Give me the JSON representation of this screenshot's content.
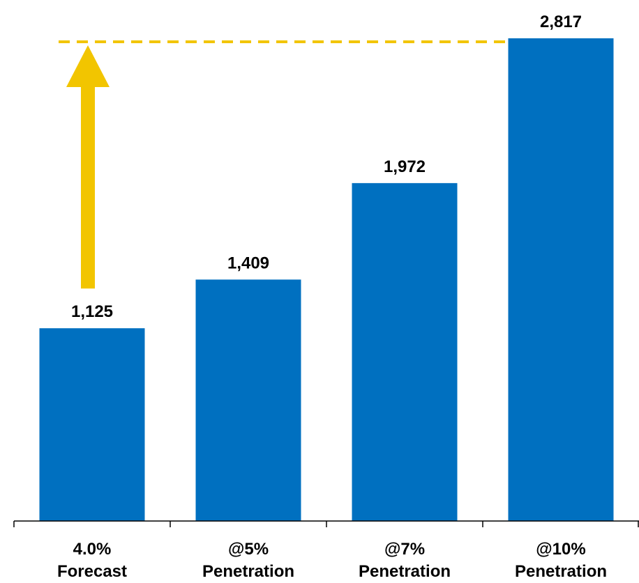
{
  "chart_data": {
    "type": "bar",
    "categories": [
      [
        "4.0%",
        "Forecast"
      ],
      [
        "@5%",
        "Penetration"
      ],
      [
        "@7%",
        "Penetration"
      ],
      [
        "@10%",
        "Penetration"
      ]
    ],
    "values": [
      1125,
      1409,
      1972,
      2817
    ],
    "data_labels": [
      "1,125",
      "1,409",
      "1,972",
      "2,817"
    ],
    "title": "",
    "xlabel": "",
    "ylabel": "",
    "ylim": [
      0,
      2817
    ],
    "grid": false,
    "legend": "none",
    "annotations": [
      {
        "type": "arrow",
        "from_value": 1125,
        "to_value": 2817,
        "color": "#F2C500"
      },
      {
        "type": "dashed-reference-line",
        "value": 2817,
        "color": "#F2C500"
      }
    ]
  },
  "colors": {
    "bar": "#0070C0",
    "arrow": "#F2C500",
    "axis": "#000000",
    "text": "#000000"
  }
}
